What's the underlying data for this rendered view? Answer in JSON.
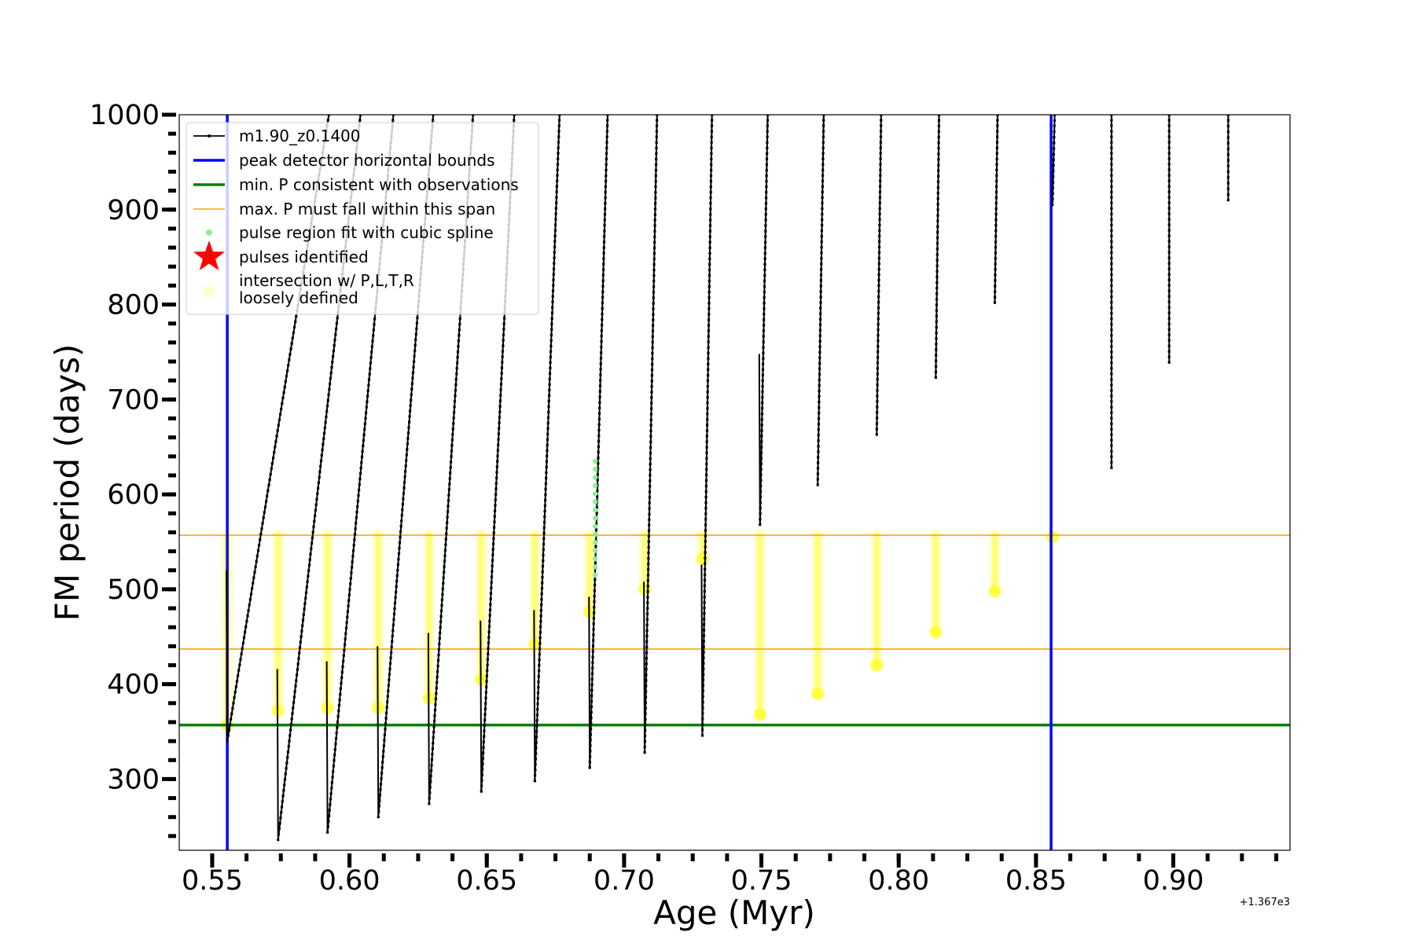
{
  "chart_data": {
    "type": "line",
    "xlabel": "Age (Myr)",
    "ylabel": "FM period (days)",
    "x_offset_label": "+1.367e3",
    "xlim": [
      0.538,
      0.9425
    ],
    "ylim": [
      225,
      1000
    ],
    "xticks": [
      {
        "value": 0.55,
        "label": "0.55"
      },
      {
        "value": 0.6,
        "label": "0.60"
      },
      {
        "value": 0.65,
        "label": "0.65"
      },
      {
        "value": 0.7,
        "label": "0.70"
      },
      {
        "value": 0.75,
        "label": "0.75"
      },
      {
        "value": 0.8,
        "label": "0.80"
      },
      {
        "value": 0.85,
        "label": "0.85"
      },
      {
        "value": 0.9,
        "label": "0.90"
      }
    ],
    "x_minor_step": 0.0125,
    "yticks": [
      {
        "value": 300,
        "label": "300"
      },
      {
        "value": 400,
        "label": "400"
      },
      {
        "value": 500,
        "label": "500"
      },
      {
        "value": 600,
        "label": "600"
      },
      {
        "value": 700,
        "label": "700"
      },
      {
        "value": 800,
        "label": "800"
      },
      {
        "value": 900,
        "label": "900"
      },
      {
        "value": 1000,
        "label": "1000"
      }
    ],
    "y_minor_step": 20,
    "grid": false,
    "legend_position": "top-left",
    "legend": [
      {
        "label": "m1.90_z0.1400",
        "kind": "line-marker",
        "color": "#000000"
      },
      {
        "label": "peak detector horizontal bounds",
        "kind": "line",
        "color": "#0000ff"
      },
      {
        "label": "min. P consistent with observations",
        "kind": "line",
        "color": "#008000"
      },
      {
        "label": "max. P must fall within this span",
        "kind": "thin-line",
        "color": "#ffa500"
      },
      {
        "label": "pulse region fit with cubic spline",
        "kind": "dot",
        "color": "#90ee90"
      },
      {
        "label": "pulses identified",
        "kind": "star",
        "color": "#ff0000"
      },
      {
        "label": "intersection w/ P,L,T,R",
        "label2": "loosely defined",
        "kind": "circle",
        "color": "#ffffcc"
      }
    ],
    "vertical_lines": [
      {
        "x": 0.5555,
        "color": "#0000ff"
      },
      {
        "x": 0.8555,
        "color": "#0000ff"
      }
    ],
    "horizontal_lines": [
      {
        "y": 357,
        "color": "#008000",
        "width": 3.5
      },
      {
        "y": 437,
        "color": "#ffa500",
        "width": 1.6
      },
      {
        "y": 557,
        "color": "#ffa500",
        "width": 1.6
      }
    ],
    "pulses": [
      {
        "x": 0.5555,
        "min": 340,
        "rise": 0.037,
        "top": 1000
      },
      {
        "x": 0.574,
        "min": 236,
        "rise": 0.03,
        "top": 1000
      },
      {
        "x": 0.592,
        "min": 244,
        "rise": 0.024,
        "top": 1000
      },
      {
        "x": 0.6105,
        "min": 260,
        "rise": 0.02,
        "top": 1000
      },
      {
        "x": 0.629,
        "min": 274,
        "rise": 0.016,
        "top": 1000
      },
      {
        "x": 0.648,
        "min": 287,
        "rise": 0.012,
        "top": 1000
      },
      {
        "x": 0.6675,
        "min": 298,
        "rise": 0.009,
        "top": 1000
      },
      {
        "x": 0.6875,
        "min": 312,
        "rise": 0.0065,
        "top": 1000
      },
      {
        "x": 0.7075,
        "min": 328,
        "rise": 0.0045,
        "top": 1000
      },
      {
        "x": 0.7285,
        "min": 346,
        "rise": 0.0035,
        "top": 1000
      },
      {
        "x": 0.7495,
        "min": 568,
        "rise": 0.0028,
        "top": 1000
      },
      {
        "x": 0.7705,
        "min": 610,
        "rise": 0.0022,
        "top": 1000
      },
      {
        "x": 0.792,
        "min": 663,
        "rise": 0.0016,
        "top": 1000
      },
      {
        "x": 0.8135,
        "min": 723,
        "rise": 0.0012,
        "top": 1000
      },
      {
        "x": 0.835,
        "min": 802,
        "rise": 0.001,
        "top": 1000
      },
      {
        "x": 0.856,
        "min": 905,
        "rise": 0.0008,
        "top": 1000
      },
      {
        "x": 0.8775,
        "min": 628,
        "rise": 0.0,
        "top": 1000
      },
      {
        "x": 0.8985,
        "min": 739,
        "rise": 0.0,
        "top": 1000
      },
      {
        "x": 0.92,
        "min": 910,
        "rise": 0.0,
        "top": 1000
      }
    ],
    "intersections": [
      {
        "x": 0.5555,
        "y_min": 357,
        "y_max": 557
      },
      {
        "x": 0.574,
        "y_min": 372,
        "y_max": 557
      },
      {
        "x": 0.592,
        "y_min": 375,
        "y_max": 557
      },
      {
        "x": 0.6105,
        "y_min": 375,
        "y_max": 557
      },
      {
        "x": 0.629,
        "y_min": 385,
        "y_max": 557
      },
      {
        "x": 0.648,
        "y_min": 405,
        "y_max": 557
      },
      {
        "x": 0.6675,
        "y_min": 442,
        "y_max": 557
      },
      {
        "x": 0.6875,
        "y_min": 476,
        "y_max": 557
      },
      {
        "x": 0.7075,
        "y_min": 500,
        "y_max": 557
      },
      {
        "x": 0.7285,
        "y_min": 532,
        "y_max": 557
      },
      {
        "x": 0.7495,
        "y_min": 368,
        "y_max": 557
      },
      {
        "x": 0.7705,
        "y_min": 390,
        "y_max": 557
      },
      {
        "x": 0.792,
        "y_min": 420,
        "y_max": 557
      },
      {
        "x": 0.8135,
        "y_min": 455,
        "y_max": 557
      },
      {
        "x": 0.835,
        "y_min": 498,
        "y_max": 557
      },
      {
        "x": 0.856,
        "y_min": 555,
        "y_max": 557
      }
    ],
    "spline_region": {
      "x": 0.6895,
      "y_min": 515,
      "y_max": 635
    }
  }
}
